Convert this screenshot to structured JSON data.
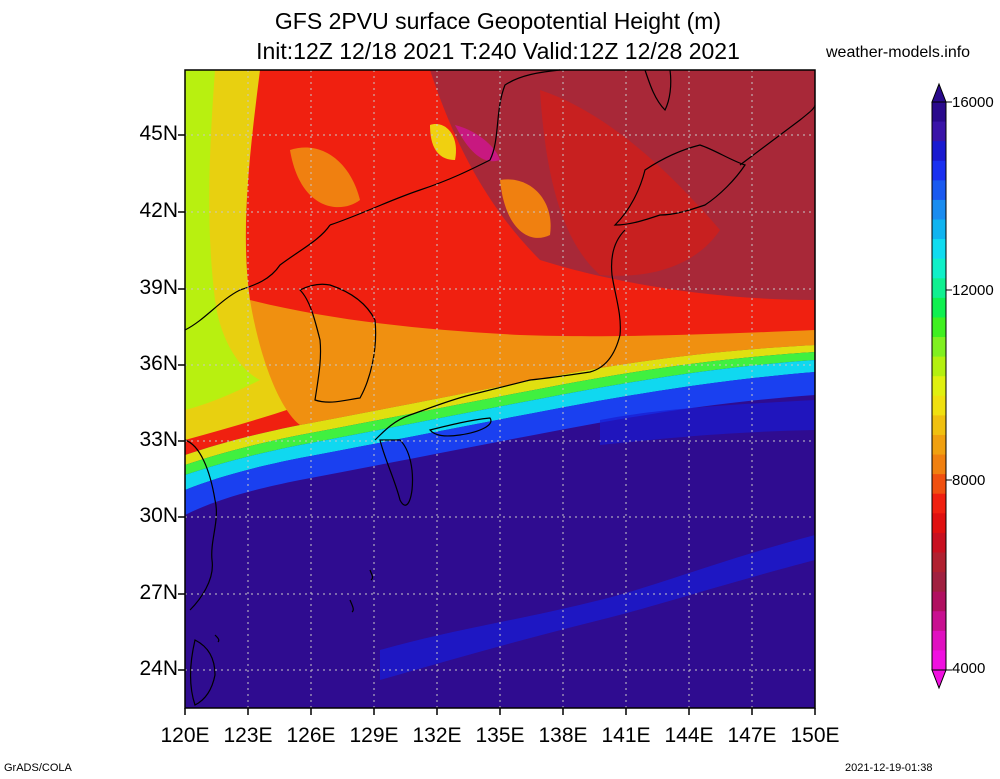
{
  "title": {
    "line1": "GFS 2PVU surface Geopotential Height (m)",
    "line2": "Init:12Z 12/18 2021 T:240 Valid:12Z 12/28 2021"
  },
  "watermark": "weather-models.info",
  "map": {
    "lat_ticks": [
      "45N",
      "42N",
      "39N",
      "36N",
      "33N",
      "30N",
      "27N",
      "24N"
    ],
    "lon_ticks": [
      "120E",
      "123E",
      "126E",
      "129E",
      "132E",
      "135E",
      "138E",
      "141E",
      "144E",
      "147E",
      "150E"
    ]
  },
  "colorbar": {
    "labels": [
      "16000",
      "12000",
      "8000",
      "4000"
    ],
    "colors": [
      "#2a0a8c",
      "#3a14a8",
      "#1a1ad0",
      "#1a30f0",
      "#1a5af0",
      "#1a8cf0",
      "#10b4f0",
      "#10dcf0",
      "#10f0c8",
      "#10f090",
      "#10f050",
      "#40f020",
      "#80f020",
      "#b4f010",
      "#e0f010",
      "#f0e010",
      "#f0c010",
      "#f0a010",
      "#f08010",
      "#f05010",
      "#f02010",
      "#e01010",
      "#c81020",
      "#b02030",
      "#a02040",
      "#b01060",
      "#c81090",
      "#e010c0",
      "#f010e0"
    ],
    "accent": "#ff0000"
  },
  "footer": {
    "left": "GrADS/COLA",
    "right": "2021-12-19-01:38"
  }
}
